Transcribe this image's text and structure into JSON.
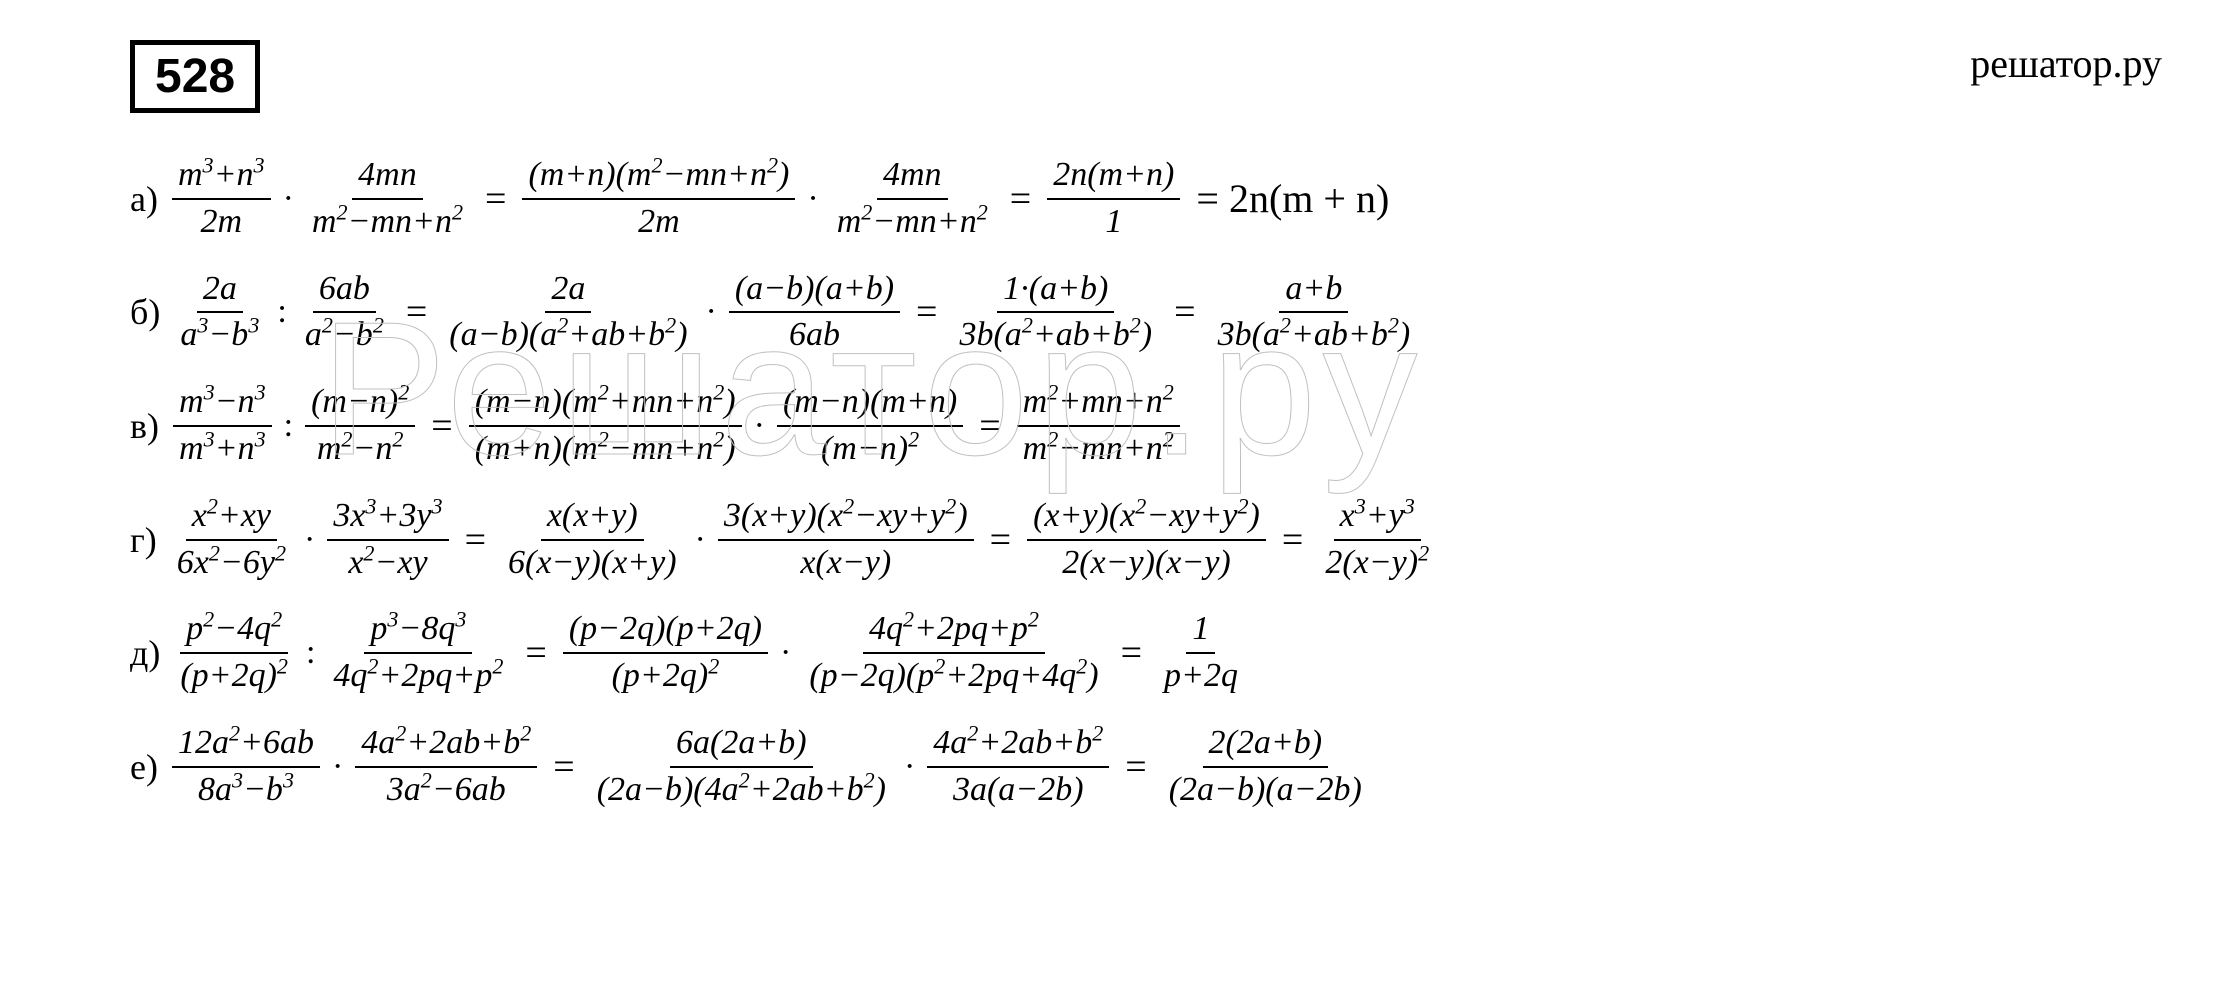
{
  "site_label": "решатор.ру",
  "problem_number": "528",
  "watermark_text": "Решатор.ру",
  "colors": {
    "background": "#ffffff",
    "text": "#000000",
    "border": "#000000",
    "watermark_stroke": "#c0c0c0"
  },
  "typography": {
    "body_font": "Georgia, Times New Roman, serif",
    "problem_number_font": "Arial, sans-serif",
    "problem_number_size_pt": 36,
    "equation_size_pt": 26,
    "site_label_size_pt": 30,
    "watermark_size_pt": 140
  },
  "equations": [
    {
      "label": "а)",
      "terms": [
        {
          "type": "frac",
          "num": "m³+n³",
          "den": "2m"
        },
        {
          "type": "op",
          "text": "·"
        },
        {
          "type": "frac",
          "num": "4mn",
          "den": "m²−mn+n²"
        },
        {
          "type": "eq",
          "text": "="
        },
        {
          "type": "frac",
          "num": "(m+n)(m²−mn+n²)",
          "den": "2m"
        },
        {
          "type": "op",
          "text": "·"
        },
        {
          "type": "frac",
          "num": "4mn",
          "den": "m²−mn+n²"
        },
        {
          "type": "eq",
          "text": "="
        },
        {
          "type": "frac",
          "num": "2n(m+n)",
          "den": "1"
        },
        {
          "type": "result",
          "text": "= 2n(m + n)"
        }
      ]
    },
    {
      "label": "б)",
      "terms": [
        {
          "type": "frac",
          "num": "2a",
          "den": "a³−b³"
        },
        {
          "type": "op",
          "text": ":"
        },
        {
          "type": "frac",
          "num": "6ab",
          "den": "a²−b²"
        },
        {
          "type": "eq",
          "text": "="
        },
        {
          "type": "frac",
          "num": "2a",
          "den": "(a−b)(a²+ab+b²)"
        },
        {
          "type": "op",
          "text": "·"
        },
        {
          "type": "frac",
          "num": "(a−b)(a+b)",
          "den": "6ab"
        },
        {
          "type": "eq",
          "text": "="
        },
        {
          "type": "frac",
          "num": "1·(a+b)",
          "den": "3b(a²+ab+b²)"
        },
        {
          "type": "eq",
          "text": "="
        },
        {
          "type": "frac",
          "num": "a+b",
          "den": "3b(a²+ab+b²)"
        }
      ]
    },
    {
      "label": "в)",
      "terms": [
        {
          "type": "frac",
          "num": "m³−n³",
          "den": "m³+n³"
        },
        {
          "type": "op",
          "text": ":"
        },
        {
          "type": "frac",
          "num": "(m−n)²",
          "den": "m²−n²"
        },
        {
          "type": "eq",
          "text": "="
        },
        {
          "type": "frac",
          "num": "(m−n)(m²+mn+n²)",
          "den": "(m+n)(m²−mn+n²)"
        },
        {
          "type": "op",
          "text": "·"
        },
        {
          "type": "frac",
          "num": "(m−n)(m+n)",
          "den": "(m−n)²"
        },
        {
          "type": "eq",
          "text": "="
        },
        {
          "type": "frac",
          "num": "m²+mn+n²",
          "den": "m²−mn+n²"
        }
      ]
    },
    {
      "label": "г)",
      "terms": [
        {
          "type": "frac",
          "num": "x²+xy",
          "den": "6x²−6y²"
        },
        {
          "type": "op",
          "text": "·"
        },
        {
          "type": "frac",
          "num": "3x³+3y³",
          "den": "x²−xy"
        },
        {
          "type": "eq",
          "text": "="
        },
        {
          "type": "frac",
          "num": "x(x+y)",
          "den": "6(x−y)(x+y)"
        },
        {
          "type": "op",
          "text": "·"
        },
        {
          "type": "frac",
          "num": "3(x+y)(x²−xy+y²)",
          "den": "x(x−y)"
        },
        {
          "type": "eq",
          "text": "="
        },
        {
          "type": "frac",
          "num": "(x+y)(x²−xy+y²)",
          "den": "2(x−y)(x−y)"
        },
        {
          "type": "eq",
          "text": "="
        },
        {
          "type": "frac",
          "num": "x³+y³",
          "den": "2(x−y)²"
        }
      ]
    },
    {
      "label": "д)",
      "terms": [
        {
          "type": "frac",
          "num": "p²−4q²",
          "den": "(p+2q)²"
        },
        {
          "type": "op",
          "text": ":"
        },
        {
          "type": "frac",
          "num": "p³−8q³",
          "den": "4q²+2pq+p²"
        },
        {
          "type": "eq",
          "text": "="
        },
        {
          "type": "frac",
          "num": "(p−2q)(p+2q)",
          "den": "(p+2q)²"
        },
        {
          "type": "op",
          "text": "·"
        },
        {
          "type": "frac",
          "num": "4q²+2pq+p²",
          "den": "(p−2q)(p²+2pq+4q²)"
        },
        {
          "type": "eq",
          "text": "="
        },
        {
          "type": "frac",
          "num": "1",
          "den": "p+2q"
        }
      ]
    },
    {
      "label": "е)",
      "terms": [
        {
          "type": "frac",
          "num": "12a²+6ab",
          "den": "8a³−b³"
        },
        {
          "type": "op",
          "text": "·"
        },
        {
          "type": "frac",
          "num": "4a²+2ab+b²",
          "den": "3a²−6ab"
        },
        {
          "type": "eq",
          "text": "="
        },
        {
          "type": "frac",
          "num": "6a(2a+b)",
          "den": "(2a−b)(4a²+2ab+b²)"
        },
        {
          "type": "op",
          "text": "·"
        },
        {
          "type": "frac",
          "num": "4a²+2ab+b²",
          "den": "3a(a−2b)"
        },
        {
          "type": "eq",
          "text": "="
        },
        {
          "type": "frac",
          "num": "2(2a+b)",
          "den": "(2a−b)(a−2b)"
        }
      ]
    }
  ]
}
